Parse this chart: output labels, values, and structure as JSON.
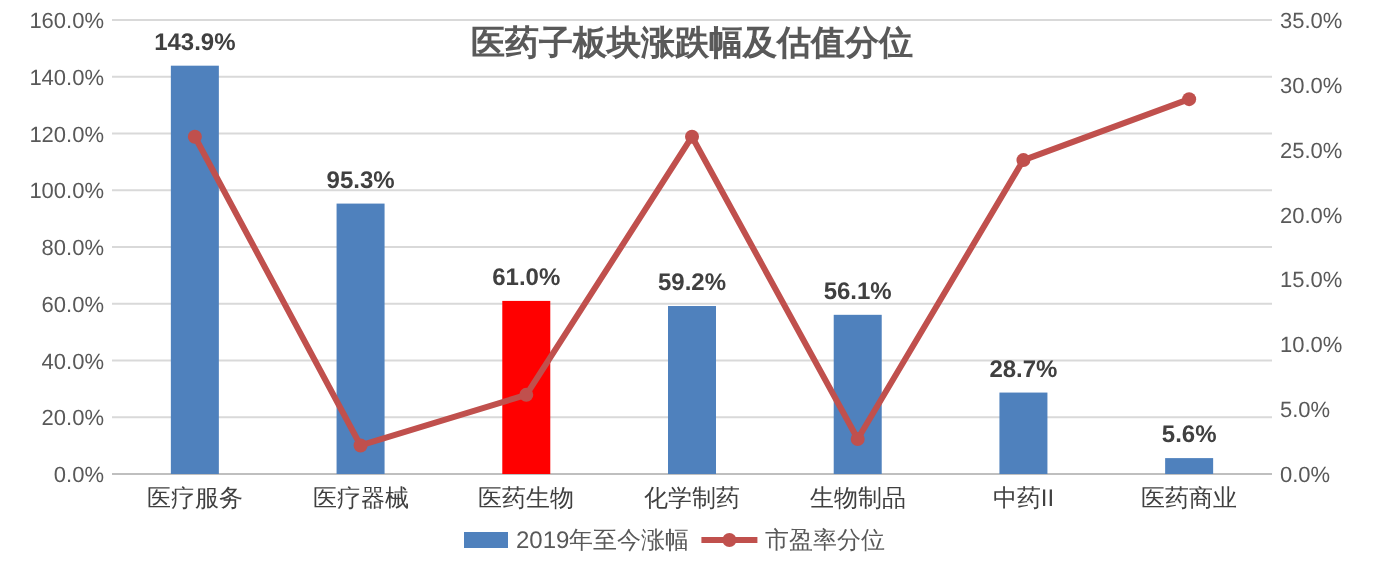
{
  "chart_data": {
    "type": "bar",
    "title": "医药子板块涨跌幅及估值分位",
    "categories": [
      "医疗服务",
      "医疗器械",
      "医药生物",
      "化学制药",
      "生物制品",
      "中药II",
      "医药商业"
    ],
    "series": [
      {
        "name": "2019年至今涨幅",
        "color": "#4f81bd",
        "colors": [
          "#4f81bd",
          "#4f81bd",
          "#ff0000",
          "#4f81bd",
          "#4f81bd",
          "#4f81bd",
          "#4f81bd"
        ],
        "values": [
          143.9,
          95.3,
          61.0,
          59.2,
          56.1,
          28.7,
          5.6
        ],
        "value_labels": [
          "143.9%",
          "95.3%",
          "61.0%",
          "59.2%",
          "56.1%",
          "28.7%",
          "5.6%"
        ]
      },
      {
        "name": "市盈率分位",
        "type": "line",
        "axis": "y2",
        "color": "#c0504d",
        "marker": "circle",
        "values": [
          26.0,
          2.2,
          6.1,
          26.0,
          2.7,
          24.2,
          28.9
        ]
      }
    ],
    "ylim": [
      0,
      160
    ],
    "yticks": [
      {
        "value": 0,
        "label": "0.0%"
      },
      {
        "value": 20,
        "label": "20.0%"
      },
      {
        "value": 40,
        "label": "40.0%"
      },
      {
        "value": 60,
        "label": "60.0%"
      },
      {
        "value": 80,
        "label": "80.0%"
      },
      {
        "value": 100,
        "label": "100.0%"
      },
      {
        "value": 120,
        "label": "120.0%"
      },
      {
        "value": 140,
        "label": "140.0%"
      },
      {
        "value": 160,
        "label": "160.0%"
      }
    ],
    "y2lim": [
      0,
      35
    ],
    "y2ticks": [
      {
        "value": 0,
        "label": "0.0%"
      },
      {
        "value": 5,
        "label": "5.0%"
      },
      {
        "value": 10,
        "label": "10.0%"
      },
      {
        "value": 15,
        "label": "15.0%"
      },
      {
        "value": 20,
        "label": "20.0%"
      },
      {
        "value": 25,
        "label": "25.0%"
      },
      {
        "value": 30,
        "label": "30.0%"
      },
      {
        "value": 35,
        "label": "35.0%"
      }
    ],
    "grid": "y",
    "legend": "bottom"
  }
}
